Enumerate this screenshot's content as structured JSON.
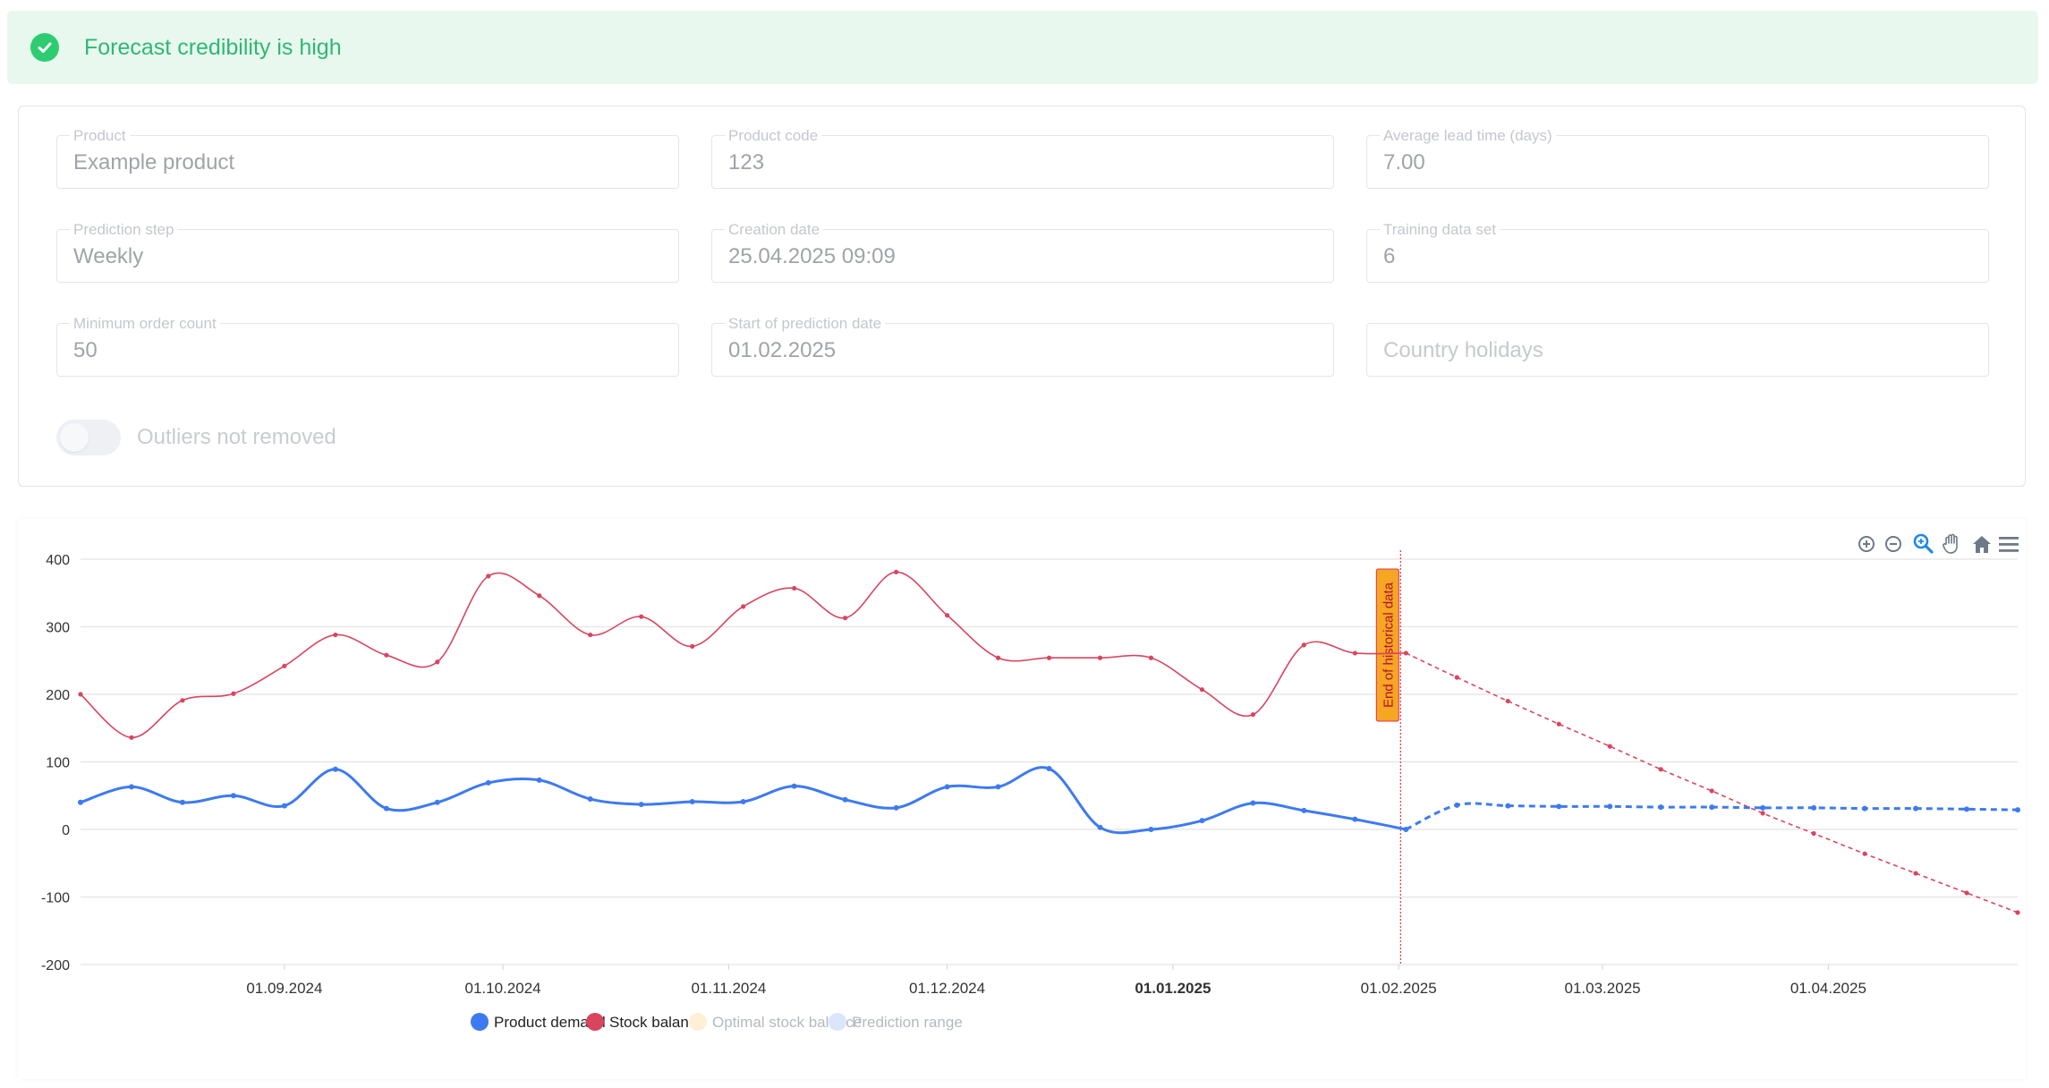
{
  "banner": {
    "message": "Forecast credibility is high",
    "color": "#2ecc71"
  },
  "form": {
    "fields": [
      {
        "label": "Product",
        "value": "Example product"
      },
      {
        "label": "Product code",
        "value": "123"
      },
      {
        "label": "Average lead time (days)",
        "value": "7.00"
      },
      {
        "label": "Prediction step",
        "value": "Weekly"
      },
      {
        "label": "Creation date",
        "value": "25.04.2025 09:09"
      },
      {
        "label": "Training data set",
        "value": "6"
      },
      {
        "label": "Minimum order count",
        "value": "50"
      },
      {
        "label": "Start of prediction date",
        "value": "01.02.2025"
      },
      {
        "label": "",
        "value": "",
        "placeholder": "Country holidays"
      }
    ],
    "toggle": {
      "label": "Outliers not removed",
      "checked": false
    }
  },
  "toolbar": {
    "icons": [
      "zoom-in-icon",
      "zoom-out-icon",
      "selection-zoom-icon",
      "pan-icon",
      "home-icon",
      "menu-icon"
    ]
  },
  "chart_data": {
    "type": "line",
    "ylim": [
      -200,
      400
    ],
    "yticks": [
      400,
      300,
      200,
      100,
      0,
      -100,
      -200
    ],
    "x_range": [
      "2024-08-04",
      "2025-04-27"
    ],
    "x_tick_labels": [
      {
        "date": "2024-09-01",
        "label": "01.09.2024",
        "bold": false
      },
      {
        "date": "2024-10-01",
        "label": "01.10.2024",
        "bold": false
      },
      {
        "date": "2024-11-01",
        "label": "01.11.2024",
        "bold": false
      },
      {
        "date": "2024-12-01",
        "label": "01.12.2024",
        "bold": false
      },
      {
        "date": "2025-01-01",
        "label": "01.01.2025",
        "bold": true
      },
      {
        "date": "2025-02-01",
        "label": "01.02.2025",
        "bold": false
      },
      {
        "date": "2025-03-01",
        "label": "01.03.2025",
        "bold": false
      },
      {
        "date": "2025-04-01",
        "label": "01.04.2025",
        "bold": false
      }
    ],
    "annotation": {
      "date": "2025-02-02",
      "text": "End of historical data",
      "line_color": "#e0304a",
      "label_fill": "#f5a623"
    },
    "series": [
      {
        "name": "Product demand",
        "color": "#3d7af2",
        "history": {
          "dates": [
            "2024-08-04",
            "2024-08-11",
            "2024-08-18",
            "2024-08-25",
            "2024-09-01",
            "2024-09-08",
            "2024-09-15",
            "2024-09-22",
            "2024-09-29",
            "2024-10-06",
            "2024-10-13",
            "2024-10-20",
            "2024-10-27",
            "2024-11-03",
            "2024-11-10",
            "2024-11-17",
            "2024-11-24",
            "2024-12-01",
            "2024-12-08",
            "2024-12-15",
            "2024-12-22",
            "2024-12-29",
            "2025-01-05",
            "2025-01-12",
            "2025-01-19",
            "2025-01-26",
            "2025-02-02"
          ],
          "values": [
            40,
            63,
            40,
            50,
            35,
            89,
            31,
            40,
            69,
            73,
            45,
            37,
            41,
            41,
            64,
            44,
            32,
            63,
            63,
            90,
            3,
            0,
            13,
            39,
            28,
            15,
            0
          ]
        },
        "forecast": {
          "dates": [
            "2025-02-02",
            "2025-02-09",
            "2025-02-16",
            "2025-02-23",
            "2025-03-02",
            "2025-03-09",
            "2025-03-16",
            "2025-03-23",
            "2025-03-30",
            "2025-04-06",
            "2025-04-13",
            "2025-04-20",
            "2025-04-27"
          ],
          "values": [
            0,
            36,
            35,
            34,
            34,
            33,
            33,
            32,
            32,
            31,
            31,
            30,
            29
          ]
        }
      },
      {
        "name": "Stock balance",
        "color": "#d9455f",
        "history": {
          "dates": [
            "2024-08-04",
            "2024-08-11",
            "2024-08-18",
            "2024-08-25",
            "2024-09-01",
            "2024-09-08",
            "2024-09-15",
            "2024-09-22",
            "2024-09-29",
            "2024-10-06",
            "2024-10-13",
            "2024-10-20",
            "2024-10-27",
            "2024-11-03",
            "2024-11-10",
            "2024-11-17",
            "2024-11-24",
            "2024-12-01",
            "2024-12-08",
            "2024-12-15",
            "2024-12-22",
            "2024-12-29",
            "2025-01-05",
            "2025-01-12",
            "2025-01-19",
            "2025-01-26",
            "2025-02-02"
          ],
          "values": [
            200,
            136,
            191,
            201,
            242,
            288,
            258,
            248,
            375,
            346,
            288,
            315,
            271,
            330,
            357,
            313,
            381,
            317,
            254,
            254,
            254,
            254,
            207,
            170,
            273,
            261,
            261
          ]
        },
        "forecast": {
          "dates": [
            "2025-02-02",
            "2025-02-09",
            "2025-02-16",
            "2025-02-23",
            "2025-03-02",
            "2025-03-09",
            "2025-03-16",
            "2025-03-23",
            "2025-03-30",
            "2025-04-06",
            "2025-04-13",
            "2025-04-20",
            "2025-04-27"
          ],
          "values": [
            261,
            225,
            190,
            156,
            123,
            89,
            57,
            24,
            -6,
            -36,
            -65,
            -94,
            -123
          ]
        }
      }
    ],
    "legend": [
      {
        "name": "Product demand",
        "color": "#3d7af2",
        "active": true
      },
      {
        "name": "Stock balance",
        "color": "#d9455f",
        "active": true
      },
      {
        "name": "Optimal stock balance",
        "color": "#fdf0d6",
        "active": false
      },
      {
        "name": "Prediction range",
        "color": "#dbe6fb",
        "active": false
      }
    ]
  }
}
